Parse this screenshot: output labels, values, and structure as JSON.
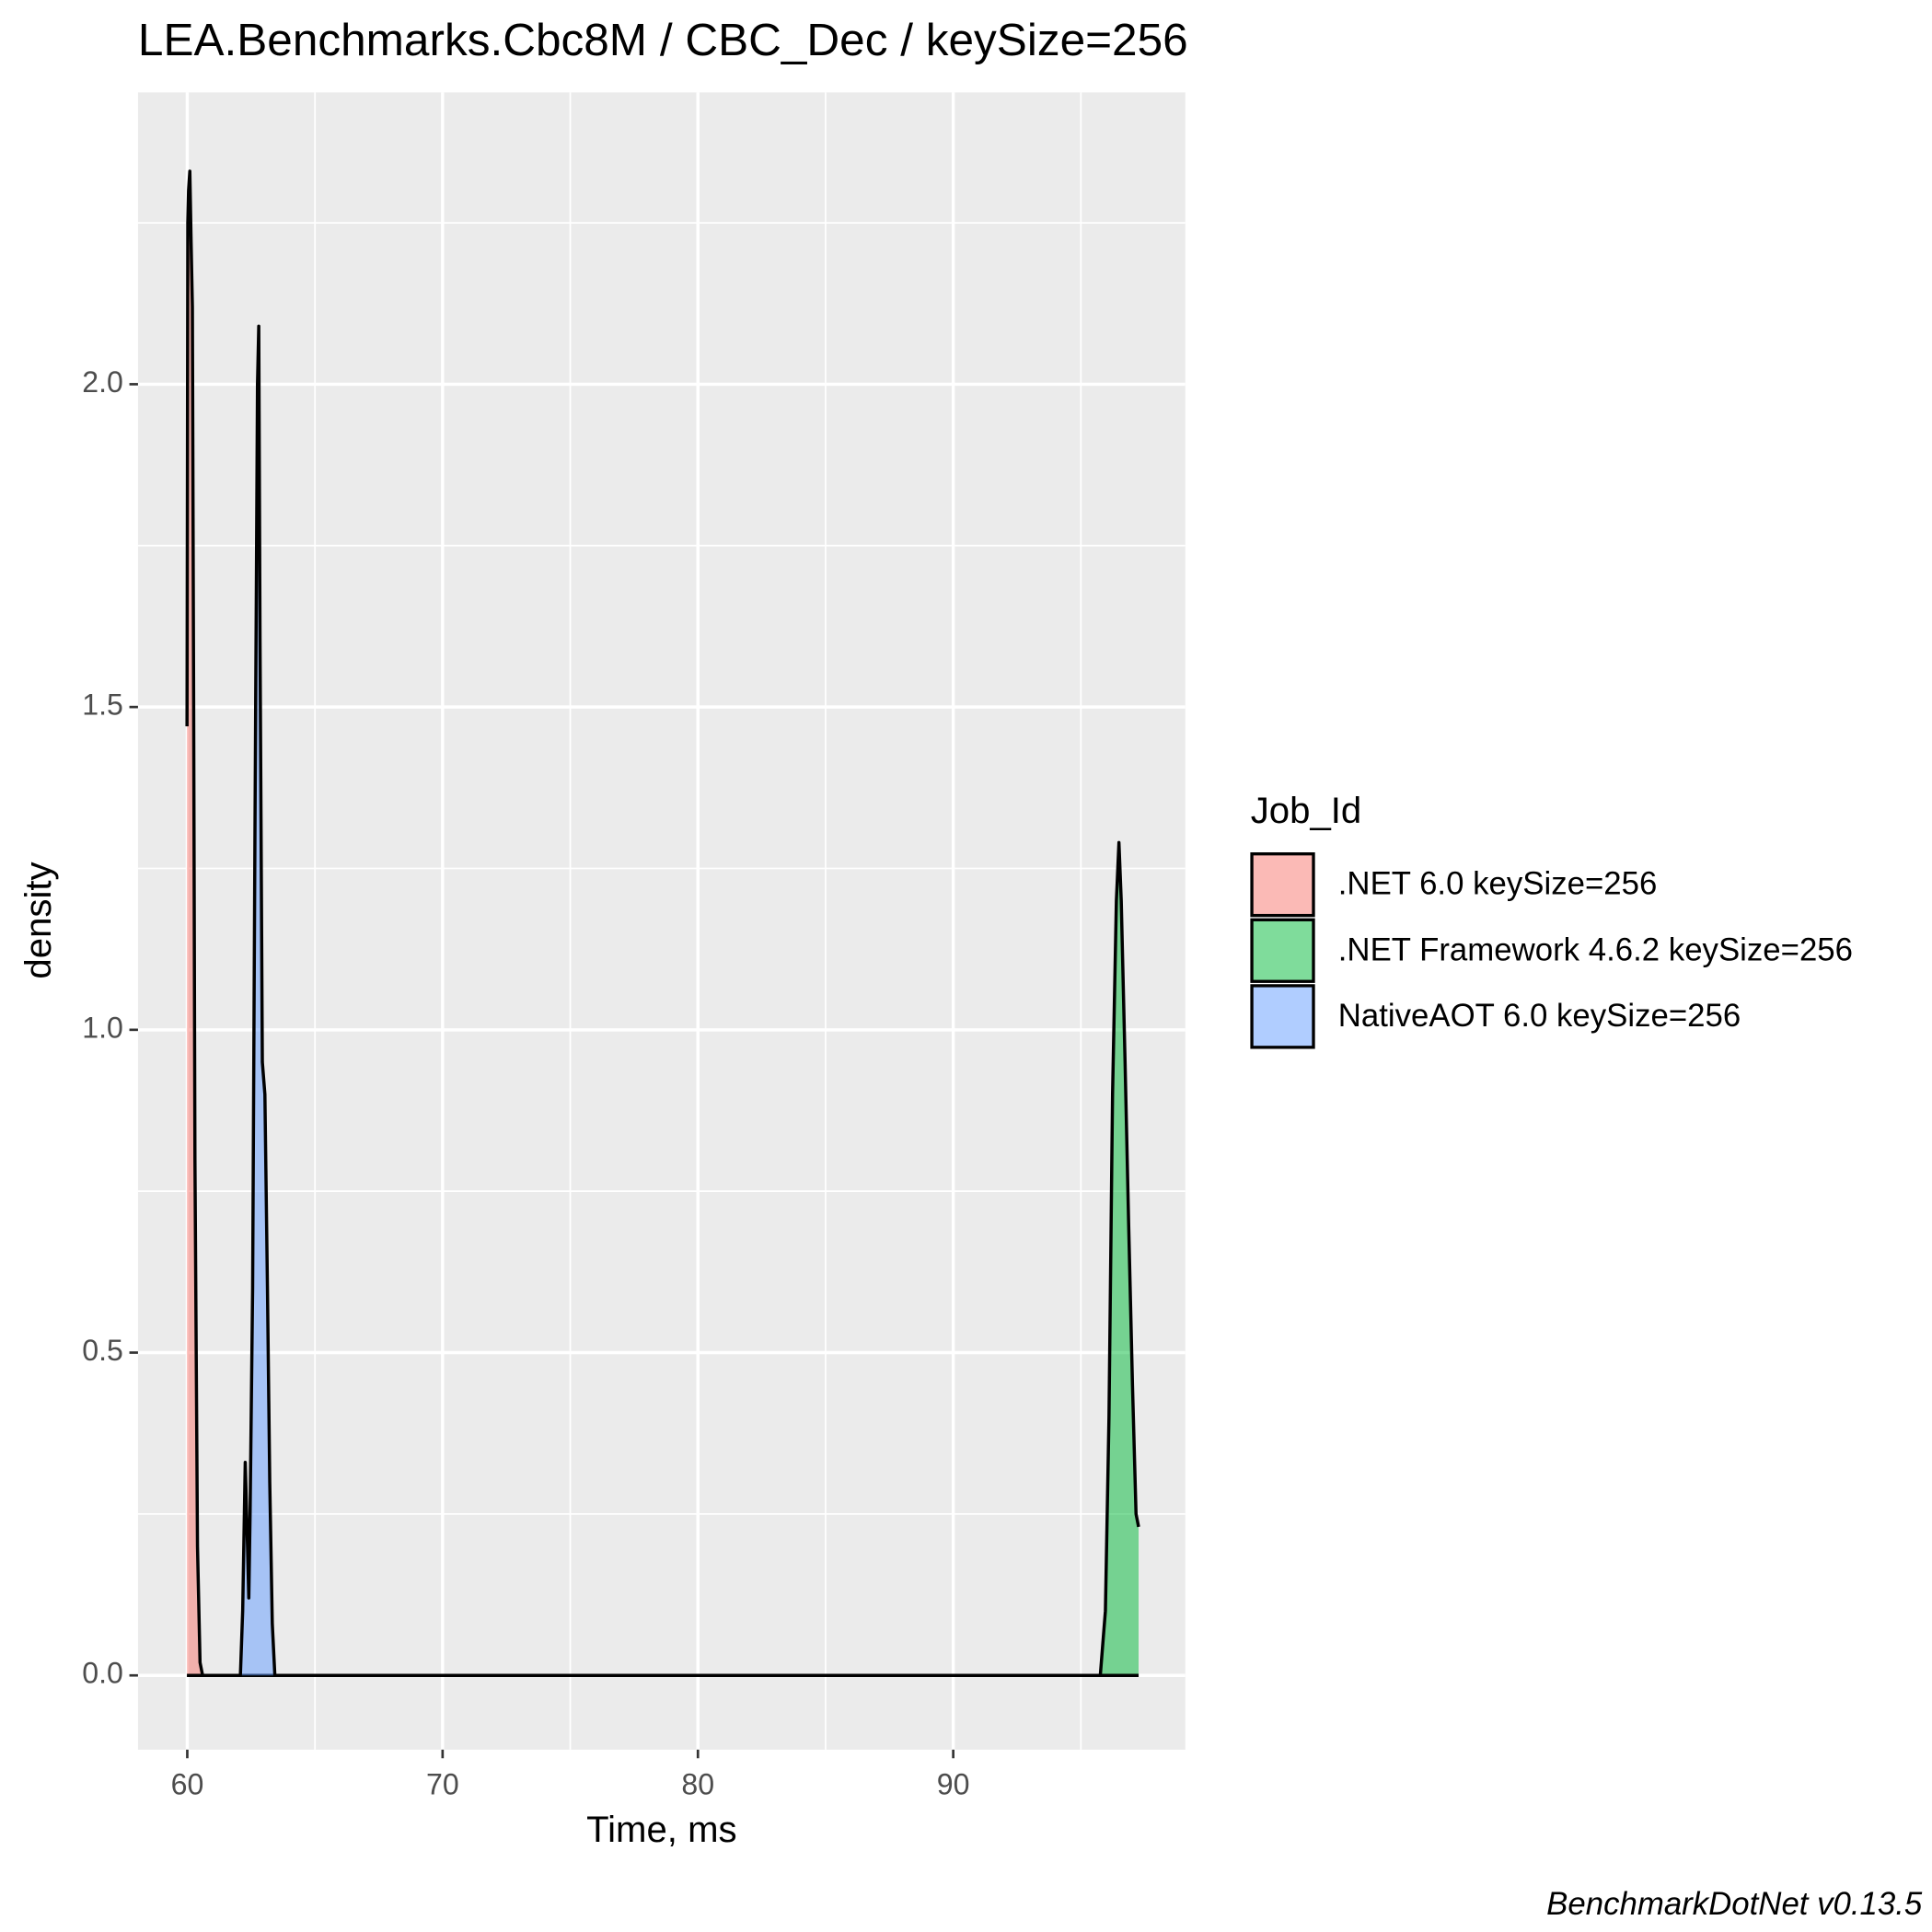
{
  "chart_data": {
    "type": "density",
    "title": "LEA.Benchmarks.Cbc8M / CBC_Dec / keySize=256",
    "x_label": "Time, ms",
    "y_label": "density",
    "legend_title": "Job_Id",
    "legend_position": "right",
    "caption": "BenchmarkDotNet v0.13.5",
    "grid": true,
    "fill_opacity": 0.5,
    "xlim": [
      58.07,
      99.09
    ],
    "ylim": [
      -0.115,
      2.452
    ],
    "xticks": [
      60,
      70,
      80,
      90
    ],
    "xminor": [
      65,
      75,
      85,
      95
    ],
    "yticks": [
      {
        "value": 0,
        "label": "0.0"
      },
      0.5,
      {
        "value": 1,
        "label": "1.0"
      },
      1.5,
      {
        "value": 2,
        "label": "2.0"
      }
    ],
    "yminor": [
      0.25,
      0.75,
      1.25,
      1.75,
      2.25
    ],
    "series": [
      {
        "name": ".NET 6.0 keySize=256",
        "color": "#F8766D",
        "x": [
          59.99,
          60.02,
          60.05,
          60.1,
          60.15,
          60.2,
          60.25,
          60.3,
          60.4,
          60.5,
          60.6,
          97.26
        ],
        "values": [
          1.47,
          2.25,
          2.3,
          2.33,
          2.22,
          2.12,
          1.5,
          0.8,
          0.2,
          0.02,
          0,
          0
        ]
      },
      {
        "name": ".NET Framework 4.6.2 keySize=256",
        "color": "#00BA38",
        "x": [
          59.99,
          95.76,
          95.96,
          96.1,
          96.24,
          96.39,
          96.49,
          96.58,
          96.73,
          96.87,
          97.02,
          97.16,
          97.26
        ],
        "values": [
          0,
          0,
          0.1,
          0.4,
          0.9,
          1.2,
          1.29,
          1.2,
          0.95,
          0.7,
          0.45,
          0.25,
          0.23
        ]
      },
      {
        "name": "NativeAOT 6.0 keySize=256",
        "color": "#619CFF",
        "x": [
          59.99,
          62.08,
          62.17,
          62.27,
          62.36,
          62.41,
          62.46,
          62.56,
          62.65,
          62.75,
          62.8,
          62.85,
          62.94,
          63.04,
          63.14,
          63.23,
          63.33,
          63.43,
          97.26
        ],
        "values": [
          0,
          0,
          0.1,
          0.33,
          0.2,
          0.12,
          0.25,
          0.6,
          1.3,
          2.0,
          2.09,
          1.6,
          0.95,
          0.9,
          0.6,
          0.3,
          0.08,
          0,
          0
        ]
      }
    ]
  }
}
